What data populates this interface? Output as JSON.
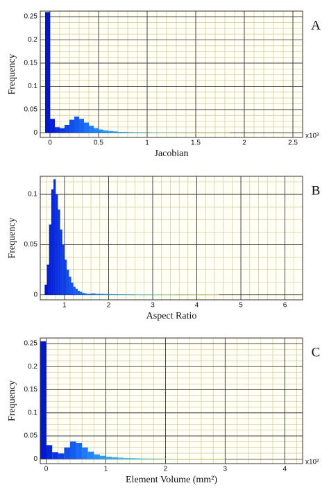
{
  "chart_data": [
    {
      "type": "histogram",
      "panel_label": "A",
      "ylabel": "Frequency",
      "xlabel": "Jacobian",
      "x_multiplier": "x10³",
      "bins": [
        -0.05,
        0,
        0.05,
        0.1,
        0.15,
        0.2,
        0.25,
        0.3,
        0.35,
        0.4,
        0.45,
        0.5,
        0.55,
        0.6,
        0.65,
        0.7,
        0.75,
        0.8,
        0.85,
        0.9,
        0.95,
        1,
        1.05,
        1.1,
        1.15,
        1.2,
        1.25,
        1.3,
        1.35,
        1.4,
        1.45,
        1.5,
        1.55,
        1.6,
        1.65,
        1.7,
        1.75,
        1.8,
        1.85
      ],
      "values": [
        0.26,
        0.03,
        0.012,
        0.01,
        0.017,
        0.028,
        0.035,
        0.03,
        0.022,
        0.015,
        0.01,
        0.007,
        0.005,
        0.004,
        0.003,
        0.002,
        0.002,
        0.0015,
        0.001,
        0.001,
        0.001,
        0.0008,
        0.0006,
        0.0005,
        0.0005,
        0.0004,
        0.0004,
        0.0003,
        0.0003,
        0.0003,
        0.0002,
        0.0002,
        0.0002,
        0.0002,
        0.0001,
        0.0001,
        0.0002,
        0.0001
      ],
      "xlim": [
        -0.1,
        2.6
      ],
      "ylim": [
        -0.01,
        0.262
      ],
      "xticks": [
        0,
        0.5,
        1,
        1.5,
        2,
        2.5
      ],
      "yticks": [
        0,
        0.05,
        0.1,
        0.15,
        0.2,
        0.25
      ],
      "grid": true,
      "minor_grid": true,
      "colormap": [
        "#0010d0",
        "#1e7cff",
        "#40d8e8",
        "#a8e060",
        "#ffff40"
      ]
    },
    {
      "type": "histogram",
      "panel_label": "B",
      "ylabel": "Frequency",
      "xlabel": "Aspect Ratio",
      "bins": [
        0.55,
        0.6,
        0.65,
        0.7,
        0.75,
        0.8,
        0.85,
        0.9,
        0.95,
        1,
        1.05,
        1.1,
        1.15,
        1.2,
        1.25,
        1.3,
        1.35,
        1.4,
        1.45,
        1.5,
        1.55,
        1.6,
        1.7,
        1.8,
        1.9,
        2,
        2.1,
        2.2,
        2.3,
        2.4,
        2.5,
        2.6,
        2.7,
        2.8,
        2.9,
        3,
        3.1,
        3.2,
        3.3,
        3.4,
        3.5,
        3.6,
        3.7,
        3.8,
        3.9,
        4,
        4.1,
        4.2,
        4.3,
        4.4,
        4.5
      ],
      "values": [
        0.01,
        0.03,
        0.07,
        0.105,
        0.115,
        0.1,
        0.085,
        0.065,
        0.05,
        0.035,
        0.025,
        0.018,
        0.012,
        0.008,
        0.006,
        0.004,
        0.003,
        0.002,
        0.0015,
        0.001,
        0.001,
        0.0015,
        0.001,
        0.001,
        0.0008,
        0.0007,
        0.0006,
        0.0005,
        0.0005,
        0.0004,
        0.0004,
        0.0003,
        0.0003,
        0.0003,
        0.0003,
        0.0002,
        0.0002,
        0.0002,
        0.0002,
        0.0002,
        0.0001,
        0.0001,
        0.0001,
        0.0001,
        0.0001,
        0.0001,
        0.0001,
        0.0001,
        0.0001,
        0.0001
      ],
      "xlim": [
        0.45,
        6.4
      ],
      "ylim": [
        -0.005,
        0.118
      ],
      "xticks": [
        1,
        2,
        3,
        4,
        5,
        6
      ],
      "yticks": [
        0,
        0.05,
        0.1
      ],
      "grid": true,
      "minor_grid": true,
      "colormap": [
        "#0010d0",
        "#1e7cff",
        "#40d8e8",
        "#a8e060",
        "#ffff40"
      ]
    },
    {
      "type": "histogram",
      "panel_label": "C",
      "ylabel": "Frequency",
      "xlabel": "Element Volume (mm²)",
      "x_multiplier": "x10²",
      "bins": [
        -0.1,
        0,
        0.1,
        0.2,
        0.3,
        0.4,
        0.5,
        0.6,
        0.7,
        0.8,
        0.9,
        1,
        1.1,
        1.2,
        1.3,
        1.4,
        1.5,
        1.6,
        1.7,
        1.8,
        1.9,
        2,
        2.1,
        2.2,
        2.3,
        2.4,
        2.5,
        2.6,
        2.7,
        2.8,
        2.9,
        3
      ],
      "values": [
        0.255,
        0.03,
        0.015,
        0.012,
        0.025,
        0.038,
        0.035,
        0.025,
        0.016,
        0.01,
        0.007,
        0.005,
        0.004,
        0.003,
        0.002,
        0.002,
        0.0015,
        0.0012,
        0.001,
        0.001,
        0.0008,
        0.0006,
        0.0005,
        0.0004,
        0.0004,
        0.0003,
        0.0003,
        0.0002,
        0.0002,
        0.0002,
        0.0001
      ],
      "xlim": [
        -0.1,
        4.3
      ],
      "ylim": [
        -0.01,
        0.262
      ],
      "xticks": [
        0,
        1,
        2,
        3,
        4
      ],
      "yticks": [
        0,
        0.05,
        0.1,
        0.15,
        0.2,
        0.25
      ],
      "grid": true,
      "minor_grid": true,
      "colormap": [
        "#0010d0",
        "#1e7cff",
        "#40d8e8",
        "#a8e060",
        "#ffff40"
      ]
    }
  ]
}
